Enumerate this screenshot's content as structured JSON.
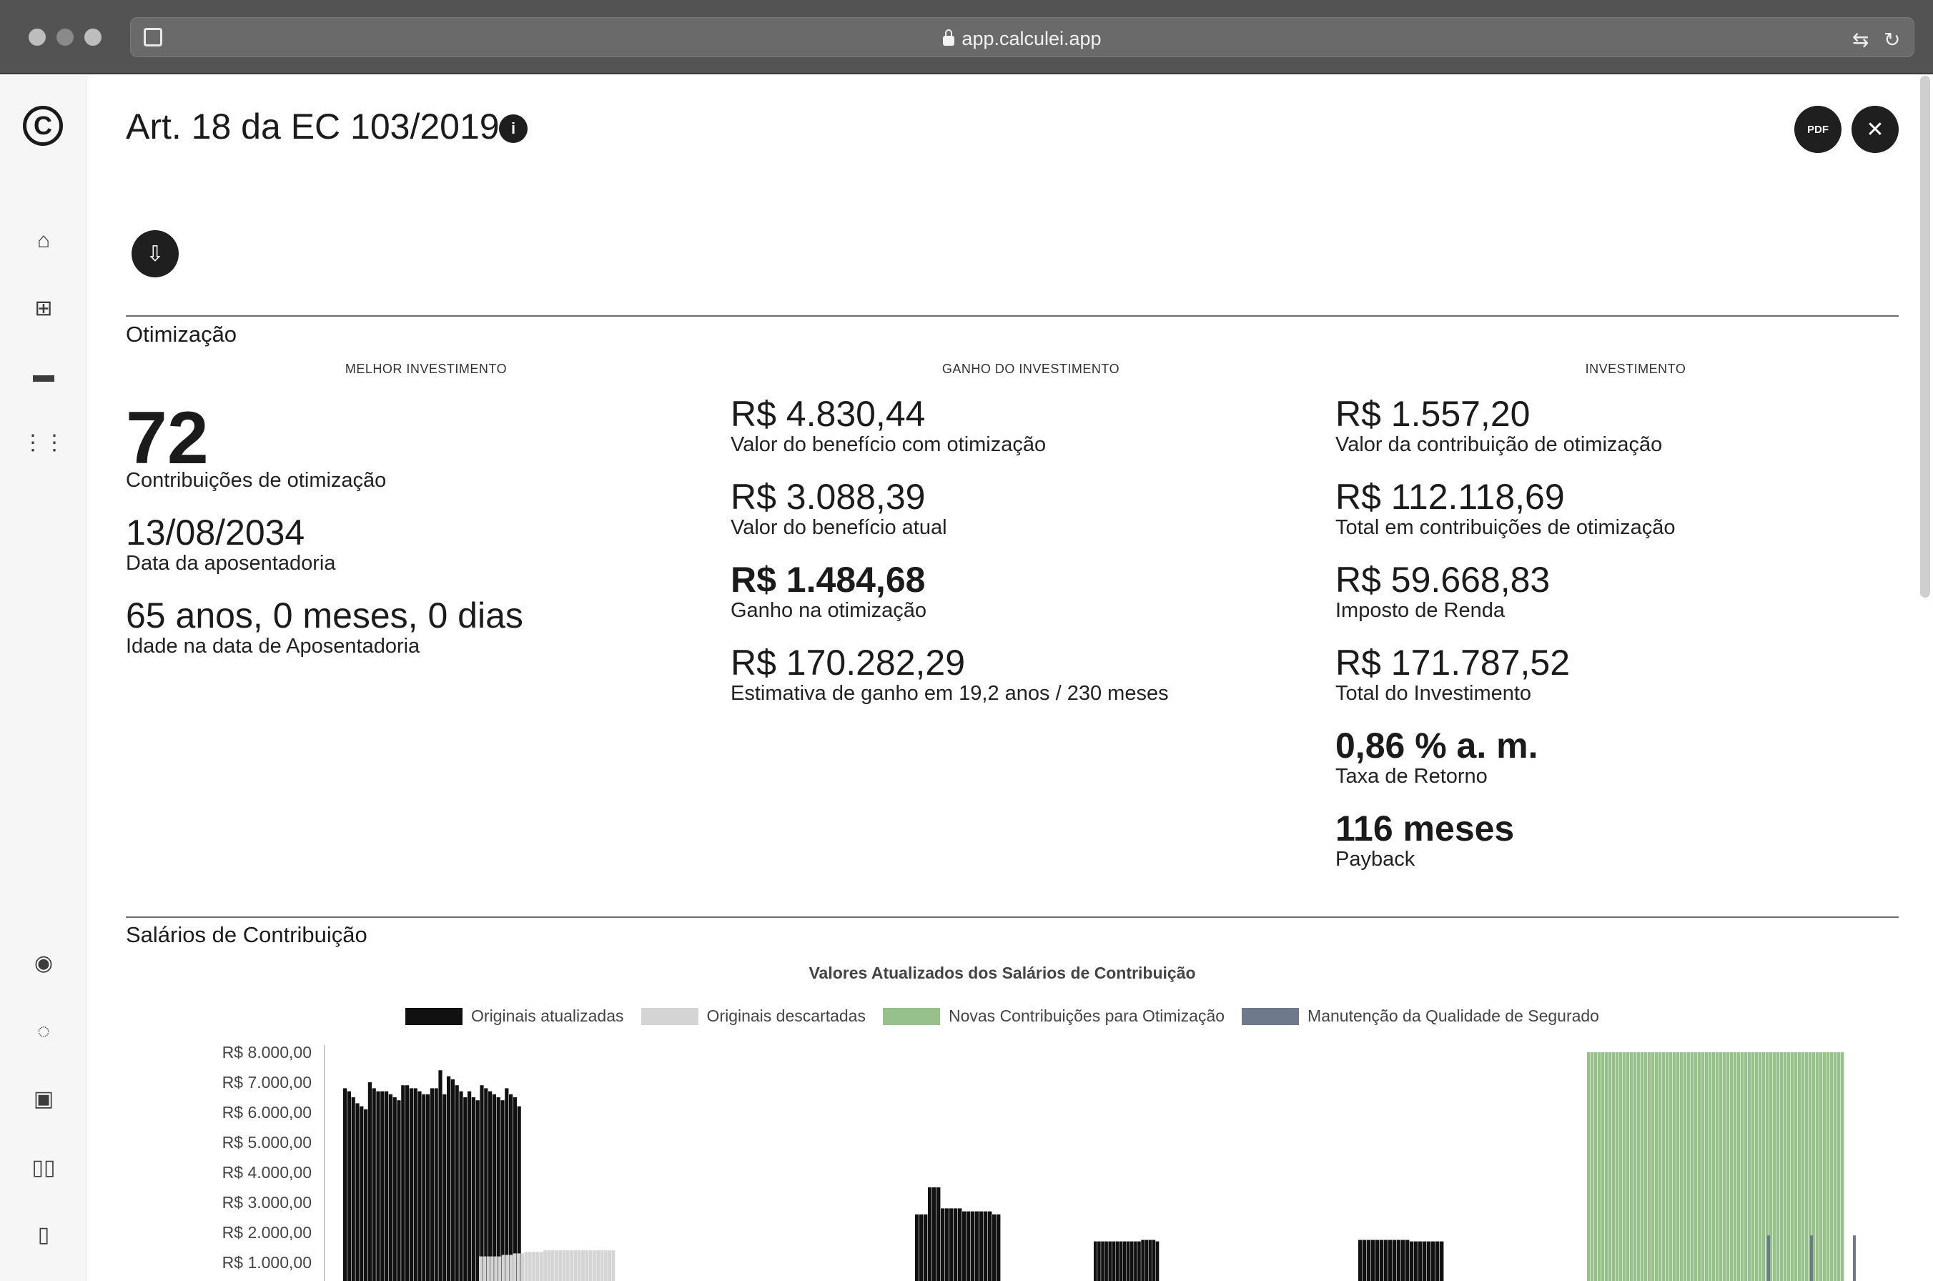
{
  "browser": {
    "url": "app.calculei.app"
  },
  "page": {
    "title": "Art. 18 da EC 103/2019",
    "pdf_label": "PDF"
  },
  "optimization": {
    "section_title": "Otimização",
    "best": {
      "header": "MELHOR INVESTIMENTO",
      "contributions_value": "72",
      "contributions_label": "Contribuições de otimização",
      "retirement_date": "13/08/2034",
      "retirement_date_label": "Data da aposentadoria",
      "age": "65 anos, 0 meses, 0 dias",
      "age_label": "Idade na data de Aposentadoria"
    },
    "gain": {
      "header": "GANHO DO INVESTIMENTO",
      "items": [
        {
          "value": "R$ 4.830,44",
          "label": "Valor do benefício com otimização"
        },
        {
          "value": "R$ 3.088,39",
          "label": "Valor do benefício atual"
        },
        {
          "value": "R$ 1.484,68",
          "label": "Ganho na otimização"
        },
        {
          "value": "R$ 170.282,29",
          "label": "Estimativa de ganho em 19,2 anos / 230 meses"
        }
      ]
    },
    "investment": {
      "header": "INVESTIMENTO",
      "items": [
        {
          "value": "R$ 1.557,20",
          "label": "Valor da contribuição de otimização"
        },
        {
          "value": "R$ 112.118,69",
          "label": "Total em contribuições de otimização"
        },
        {
          "value": "R$ 59.668,83",
          "label": "Imposto de Renda"
        },
        {
          "value": "R$ 171.787,52",
          "label": "Total do Investimento"
        },
        {
          "value": "0,86 % a. m.",
          "label": "Taxa de Retorno"
        },
        {
          "value": "116 meses",
          "label": "Payback"
        }
      ]
    }
  },
  "salaries": {
    "section_title": "Salários de Contribuição",
    "chart_data": {
      "type": "bar",
      "title": "Valores Atualizados dos Salários de Contribuição",
      "y_tick_labels": [
        "R$ 8.000,00",
        "R$ 7.000,00",
        "R$ 6.000,00",
        "R$ 5.000,00",
        "R$ 4.000,00",
        "R$ 3.000,00",
        "R$ 2.000,00",
        "R$ 1.000,00"
      ],
      "ylim_visible": [
        800,
        8000
      ],
      "legend": [
        {
          "name": "Originais atualizadas",
          "color": "#111111"
        },
        {
          "name": "Originais descartadas",
          "color": "#d4d4d4"
        },
        {
          "name": "Novas Contribuições para Otimização",
          "color": "#97c18a"
        },
        {
          "name": "Manutenção da Qualidade de Segurado",
          "color": "#6e7a8c"
        }
      ],
      "groups": [
        {
          "series": 0,
          "values": [
            6800,
            6700,
            6500,
            6300,
            6200,
            6100,
            7000,
            6800,
            6700,
            6700,
            6700,
            6600,
            6500,
            6400,
            6900,
            6900,
            6800,
            6800,
            6700,
            6600,
            6600,
            6800,
            6800,
            7400,
            6600,
            7200,
            7100,
            6900,
            6700,
            6500,
            6700,
            6500,
            6400,
            6900,
            6800,
            6700,
            6600,
            6500,
            6400,
            6800,
            6600,
            6500,
            6200
          ]
        },
        {
          "series": 1,
          "values": [
            1200,
            1200,
            1200,
            1200,
            1200,
            1200,
            1250,
            1250,
            1250,
            1300,
            1300,
            1300,
            1350,
            1350,
            1350,
            1350,
            1350,
            1400,
            1400,
            1400,
            1400,
            1400,
            1400,
            1400,
            1400,
            1400,
            1400,
            1400,
            1400,
            1400,
            1400,
            1400,
            1400,
            1400,
            1400,
            1400
          ]
        },
        {
          "series": 0,
          "values": [
            2600,
            2600,
            2600,
            3500,
            3500,
            3500,
            2800,
            2800,
            2800,
            2800,
            2800,
            2700,
            2700,
            2700,
            2700,
            2700,
            2700,
            2700,
            2600,
            2600
          ]
        },
        {
          "series": 0,
          "values": [
            1700,
            1700,
            1700,
            1700,
            1700,
            1700,
            1700,
            1700,
            1700,
            1700,
            1700,
            1700,
            1700,
            1750,
            1750,
            1750,
            1750,
            1700
          ]
        },
        {
          "series": 0,
          "values": [
            1750,
            1750,
            1750,
            1750,
            1750,
            1750,
            1750,
            1750,
            1750,
            1750,
            1750,
            1750,
            1700,
            1700,
            1700,
            1700,
            1700,
            1700,
            1700,
            1700
          ]
        },
        {
          "series": 2,
          "count": 72,
          "value": 8000
        },
        {
          "series": 3,
          "values": [
            1900,
            1900,
            1900
          ]
        }
      ]
    }
  }
}
